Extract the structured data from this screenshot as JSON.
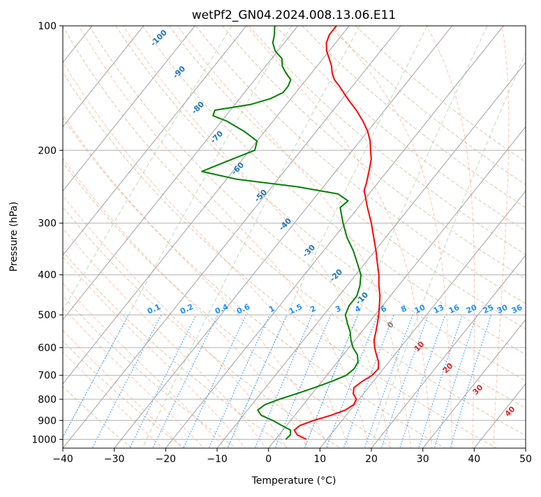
{
  "chart_data": {
    "type": "line",
    "chart_kind": "skew-T log-P diagram",
    "title": "wetPf2_GN04.2024.008.13.06.E11",
    "xlabel": "Temperature (°C)",
    "ylabel": "Pressure (hPa)",
    "xlim": [
      -40,
      50
    ],
    "ylim": [
      1050,
      100
    ],
    "y_scale": "log",
    "x_ticks": [
      -40,
      -30,
      -20,
      -10,
      0,
      10,
      20,
      30,
      40,
      50
    ],
    "y_ticks": [
      100,
      200,
      300,
      400,
      500,
      600,
      700,
      800,
      900,
      1000
    ],
    "grid": true,
    "colors": {
      "temperature": "#ff0000",
      "dewpoint": "#008000",
      "isotherm": "#a0a0a0",
      "dry_adiabat": "#d2b48c",
      "moist_adiabat": "#ff7f50",
      "mixing_ratio": "#1e90ff",
      "saturation_mixing": "#7fbf7f",
      "isotherm_label": "#1f77b4",
      "warm_label": "#d62728",
      "zero_label": "#808080"
    },
    "series": [
      {
        "name": "Temperature",
        "points": [
          [
            1000,
            6.0
          ],
          [
            975,
            3.5
          ],
          [
            950,
            2.2
          ],
          [
            925,
            2.6
          ],
          [
            900,
            4.5
          ],
          [
            875,
            7.0
          ],
          [
            850,
            9.0
          ],
          [
            825,
            9.8
          ],
          [
            800,
            9.5
          ],
          [
            775,
            8.0
          ],
          [
            750,
            7.2
          ],
          [
            725,
            7.8
          ],
          [
            700,
            8.8
          ],
          [
            675,
            9.0
          ],
          [
            650,
            8.0
          ],
          [
            625,
            6.5
          ],
          [
            600,
            5.0
          ],
          [
            575,
            3.7
          ],
          [
            550,
            2.8
          ],
          [
            525,
            1.8
          ],
          [
            500,
            0.7
          ],
          [
            475,
            -0.6
          ],
          [
            450,
            -2.0
          ],
          [
            425,
            -3.8
          ],
          [
            400,
            -5.5
          ],
          [
            375,
            -7.6
          ],
          [
            350,
            -9.8
          ],
          [
            325,
            -12.3
          ],
          [
            300,
            -15.0
          ],
          [
            275,
            -18.2
          ],
          [
            250,
            -21.5
          ],
          [
            240,
            -22.2
          ],
          [
            225,
            -23.5
          ],
          [
            210,
            -25.0
          ],
          [
            200,
            -26.5
          ],
          [
            190,
            -28.0
          ],
          [
            180,
            -30.0
          ],
          [
            170,
            -32.5
          ],
          [
            160,
            -35.5
          ],
          [
            150,
            -39.0
          ],
          [
            140,
            -42.5
          ],
          [
            135,
            -44.5
          ],
          [
            130,
            -46.0
          ],
          [
            125,
            -47.2
          ],
          [
            120,
            -48.8
          ],
          [
            115,
            -50.5
          ],
          [
            110,
            -51.8
          ],
          [
            105,
            -52.5
          ],
          [
            100,
            -52.5
          ]
        ]
      },
      {
        "name": "Dewpoint",
        "points": [
          [
            1000,
            2.0
          ],
          [
            975,
            2.2
          ],
          [
            950,
            1.5
          ],
          [
            925,
            -1.0
          ],
          [
            900,
            -3.5
          ],
          [
            875,
            -6.5
          ],
          [
            850,
            -8.0
          ],
          [
            825,
            -7.5
          ],
          [
            800,
            -5.5
          ],
          [
            775,
            -3.0
          ],
          [
            750,
            -0.5
          ],
          [
            725,
            1.8
          ],
          [
            700,
            3.8
          ],
          [
            675,
            4.3
          ],
          [
            650,
            4.0
          ],
          [
            625,
            2.8
          ],
          [
            600,
            0.8
          ],
          [
            575,
            -0.8
          ],
          [
            550,
            -2.2
          ],
          [
            525,
            -4.0
          ],
          [
            500,
            -5.8
          ],
          [
            475,
            -6.5
          ],
          [
            450,
            -6.5
          ],
          [
            425,
            -7.5
          ],
          [
            400,
            -9.0
          ],
          [
            375,
            -11.5
          ],
          [
            350,
            -14.2
          ],
          [
            325,
            -17.5
          ],
          [
            300,
            -20.5
          ],
          [
            275,
            -23.5
          ],
          [
            265,
            -23.0
          ],
          [
            255,
            -26.0
          ],
          [
            245,
            -35.0
          ],
          [
            235,
            -48.0
          ],
          [
            225,
            -56.0
          ],
          [
            210,
            -52.0
          ],
          [
            200,
            -49.0
          ],
          [
            190,
            -50.0
          ],
          [
            180,
            -54.0
          ],
          [
            170,
            -59.0
          ],
          [
            165,
            -62.5
          ],
          [
            160,
            -63.0
          ],
          [
            155,
            -57.0
          ],
          [
            150,
            -54.0
          ],
          [
            145,
            -52.5
          ],
          [
            140,
            -52.5
          ],
          [
            135,
            -53.0
          ],
          [
            130,
            -55.0
          ],
          [
            125,
            -56.8
          ],
          [
            120,
            -58.0
          ],
          [
            115,
            -60.5
          ],
          [
            110,
            -62.2
          ],
          [
            105,
            -63.2
          ],
          [
            100,
            -64.5
          ]
        ]
      }
    ],
    "isotherm_labels": [
      "-100",
      "-90",
      "-80",
      "-70",
      "-60",
      "-50",
      "-40",
      "-30",
      "-20",
      "-10",
      "0",
      "10",
      "20",
      "30",
      "40"
    ],
    "mixing_ratio_labels": [
      "0.1",
      "0.2",
      "0.4",
      "0.6",
      "1",
      "1.5",
      "2",
      "3",
      "4",
      "6",
      "8",
      "10",
      "13",
      "16",
      "20",
      "25",
      "30",
      "36"
    ]
  }
}
